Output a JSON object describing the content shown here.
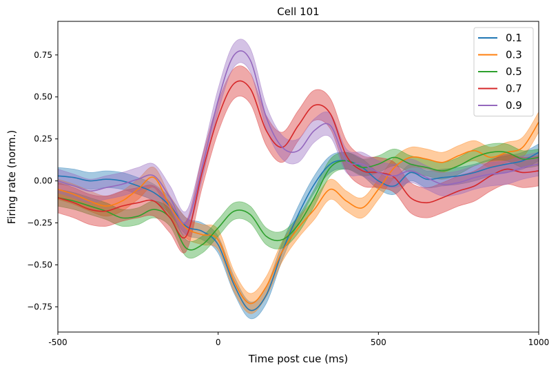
{
  "chart_data": {
    "type": "line",
    "title": "Cell 101",
    "xlabel": "Time post cue (ms)",
    "ylabel": "Firing rate (norm.)",
    "xlim": [
      -500,
      1000
    ],
    "ylim": [
      -0.9,
      0.95
    ],
    "x_ticks": [
      -500,
      0,
      500,
      1000
    ],
    "x_tick_labels": [
      "-500",
      "0",
      "500",
      "1000"
    ],
    "y_ticks": [
      -0.75,
      -0.5,
      -0.25,
      0.0,
      0.25,
      0.5,
      0.75
    ],
    "y_tick_labels": [
      "−0.75",
      "−0.50",
      "−0.25",
      "0.00",
      "0.25",
      "0.50",
      "0.75"
    ],
    "legend_position": "top-right",
    "grid": false,
    "shaded_band": "±error around each series",
    "x": [
      -500,
      -450,
      -400,
      -350,
      -300,
      -250,
      -200,
      -150,
      -100,
      -50,
      0,
      50,
      100,
      150,
      200,
      250,
      300,
      350,
      400,
      450,
      500,
      550,
      600,
      650,
      700,
      750,
      800,
      850,
      900,
      950,
      1000
    ],
    "series": [
      {
        "name": "0.1",
        "color": "#1f77b4",
        "band_half_width": 0.05,
        "values": [
          0.03,
          0.02,
          0.0,
          0.01,
          0.0,
          -0.03,
          -0.07,
          -0.15,
          -0.27,
          -0.3,
          -0.38,
          -0.62,
          -0.77,
          -0.68,
          -0.42,
          -0.2,
          -0.02,
          0.1,
          0.12,
          0.08,
          0.0,
          -0.03,
          0.05,
          0.01,
          0.02,
          0.03,
          0.05,
          0.08,
          0.1,
          0.12,
          0.17
        ]
      },
      {
        "name": "0.3",
        "color": "#ff7f0e",
        "band_half_width": 0.06,
        "values": [
          -0.05,
          -0.08,
          -0.12,
          -0.15,
          -0.12,
          -0.05,
          0.02,
          -0.15,
          -0.28,
          -0.32,
          -0.35,
          -0.6,
          -0.73,
          -0.63,
          -0.42,
          -0.28,
          -0.17,
          -0.05,
          -0.12,
          -0.16,
          -0.05,
          0.08,
          0.14,
          0.13,
          0.11,
          0.15,
          0.18,
          0.14,
          0.17,
          0.2,
          0.35
        ]
      },
      {
        "name": "0.5",
        "color": "#2ca02c",
        "band_half_width": 0.05,
        "values": [
          -0.1,
          -0.12,
          -0.15,
          -0.18,
          -0.22,
          -0.21,
          -0.17,
          -0.22,
          -0.4,
          -0.38,
          -0.28,
          -0.18,
          -0.2,
          -0.33,
          -0.35,
          -0.26,
          -0.1,
          0.08,
          0.12,
          0.08,
          0.1,
          0.14,
          0.1,
          0.08,
          0.06,
          0.09,
          0.14,
          0.17,
          0.17,
          0.13,
          0.14
        ]
      },
      {
        "name": "0.7",
        "color": "#d62728",
        "band_half_width": 0.09,
        "values": [
          -0.1,
          -0.13,
          -0.17,
          -0.18,
          -0.15,
          -0.13,
          -0.12,
          -0.22,
          -0.33,
          0.05,
          0.38,
          0.58,
          0.55,
          0.3,
          0.2,
          0.33,
          0.45,
          0.4,
          0.15,
          0.06,
          0.05,
          0.02,
          -0.1,
          -0.13,
          -0.1,
          -0.06,
          -0.03,
          0.03,
          0.07,
          0.05,
          0.06
        ]
      },
      {
        "name": "0.9",
        "color": "#9467bd",
        "band_half_width": 0.07,
        "values": [
          0.0,
          -0.03,
          -0.06,
          -0.04,
          -0.02,
          0.01,
          0.03,
          -0.1,
          -0.25,
          0.08,
          0.48,
          0.75,
          0.72,
          0.38,
          0.2,
          0.18,
          0.3,
          0.33,
          0.12,
          0.1,
          0.05,
          0.03,
          0.06,
          0.02,
          -0.02,
          -0.01,
          0.02,
          0.04,
          0.05,
          0.08,
          0.1
        ]
      }
    ]
  }
}
